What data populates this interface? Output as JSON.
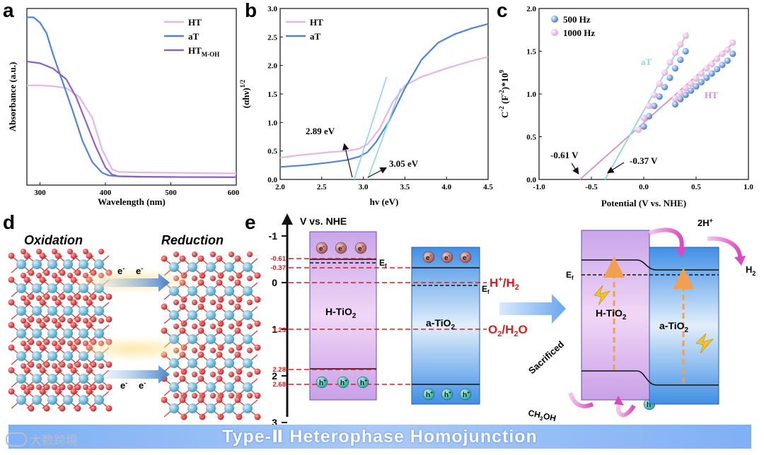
{
  "panels": {
    "a": {
      "letter": "a",
      "xlabel": "Wavelength (nm)",
      "ylabel": "Absorbance (a.u.)",
      "xticks": [
        "300",
        "400",
        "500",
        "600"
      ],
      "legend": [
        "HT",
        "aT",
        "HT",
        "M-OH"
      ]
    },
    "b": {
      "letter": "b",
      "xlabel": "hv (eV)",
      "ylabel": "(αhν)",
      "ylabel_sup": "1/2",
      "xticks": [
        "2.0",
        "2.5",
        "3.0",
        "3.5",
        "4.0",
        "4.5"
      ],
      "yticks": [
        "0.0",
        "0.5",
        "1.0",
        "1.5",
        "2.0",
        "2.5",
        "3.0"
      ],
      "legend": [
        "HT",
        "aT"
      ],
      "annotations": [
        "2.89 eV",
        "3.05 eV"
      ]
    },
    "c": {
      "letter": "c",
      "xlabel": "Potential (V vs. NHE)",
      "ylabel_parts": [
        "C",
        "-2",
        " (F",
        "-2",
        ")*10",
        "9"
      ],
      "xticks": [
        "-1.0",
        "-0.5",
        "0.0",
        "0.5",
        "1.0"
      ],
      "yticks": [
        "0.0",
        "0.5",
        "1.0",
        "1.5",
        "2.0"
      ],
      "legend": [
        "500 Hz",
        "1000 Hz"
      ],
      "labels": [
        "aT",
        "HT"
      ],
      "annotations": [
        "-0.61 V",
        "-0.37 V"
      ]
    },
    "d": {
      "letter": "d",
      "oxidation": "Oxidation",
      "reduction": "Reduction",
      "electron": "e",
      "minus": "-"
    },
    "e": {
      "letter": "e",
      "axis_title": "V vs. NHE",
      "axis_ticks": [
        "-1",
        "0",
        "1",
        "2",
        "3"
      ],
      "levels": [
        "-0.61",
        "-0.37",
        "1.23",
        "2.28",
        "2.68"
      ],
      "ef": "E",
      "ef_sub": "f",
      "ht": "H-TiO",
      "at": "a-TiO",
      "sub2": "2",
      "hplus_couple": "H",
      "hplus_couple_b": "/H",
      "o2_couple": "O",
      "o2_couple_b": "/H",
      "o2_couple_c": "O",
      "hole": "h",
      "plus": "+",
      "twoh": "2H",
      "h2": "H",
      "sacrificed": "Sacrificed",
      "ch3oh_a": "CH",
      "ch3oh_b": "OH",
      "three": "3"
    }
  },
  "banner": "Type-Ⅱ Heterophase Homojunction",
  "watermark": "大数跨境",
  "colors": {
    "HT": "#e5b6e5",
    "aT": "#4f86cf",
    "HT_MOH": "#8a64c4",
    "fit_aT": "#8ed3ea",
    "fit_HT": "#d68ec6",
    "dash": "#d42020",
    "banner": "#8fb9f5"
  },
  "chart_data": [
    {
      "type": "line",
      "title": "a",
      "xlabel": "Wavelength (nm)",
      "ylabel": "Absorbance (a.u.)",
      "xlim": [
        280,
        600
      ],
      "ylim": [
        0,
        1
      ],
      "series": [
        {
          "name": "HT",
          "x": [
            280,
            300,
            320,
            340,
            360,
            380,
            395,
            410,
            420,
            450,
            500,
            550,
            600
          ],
          "y": [
            0.565,
            0.565,
            0.56,
            0.55,
            0.5,
            0.38,
            0.2,
            0.09,
            0.075,
            0.072,
            0.07,
            0.068,
            0.066
          ]
        },
        {
          "name": "aT",
          "x": [
            280,
            290,
            300,
            310,
            320,
            335,
            350,
            365,
            380,
            395,
            405,
            420,
            450,
            500,
            600
          ],
          "y": [
            0.95,
            0.95,
            0.92,
            0.86,
            0.74,
            0.58,
            0.42,
            0.25,
            0.13,
            0.07,
            0.055,
            0.05,
            0.048,
            0.046,
            0.045
          ]
        },
        {
          "name": "HT M-OH",
          "x": [
            280,
            300,
            320,
            340,
            355,
            370,
            385,
            400,
            410,
            420,
            450,
            500,
            600
          ],
          "y": [
            0.7,
            0.69,
            0.66,
            0.6,
            0.5,
            0.36,
            0.22,
            0.1,
            0.06,
            0.05,
            0.047,
            0.046,
            0.045
          ]
        }
      ]
    },
    {
      "type": "line",
      "title": "b",
      "xlabel": "hv (eV)",
      "ylabel": "(αhν)1/2",
      "xlim": [
        2.0,
        4.5
      ],
      "ylim": [
        0,
        3.0
      ],
      "series": [
        {
          "name": "HT",
          "x": [
            2.0,
            2.2,
            2.4,
            2.6,
            2.8,
            2.95,
            3.05,
            3.2,
            3.35,
            3.5,
            3.7,
            4.0,
            4.3,
            4.5
          ],
          "y": [
            0.38,
            0.42,
            0.45,
            0.48,
            0.5,
            0.54,
            0.62,
            0.9,
            1.35,
            1.65,
            1.8,
            1.95,
            2.08,
            2.15
          ]
        },
        {
          "name": "aT",
          "x": [
            2.0,
            2.3,
            2.6,
            2.8,
            2.95,
            3.05,
            3.15,
            3.3,
            3.5,
            3.7,
            3.9,
            4.1,
            4.3,
            4.5
          ],
          "y": [
            0.22,
            0.25,
            0.3,
            0.34,
            0.4,
            0.48,
            0.65,
            1.0,
            1.6,
            2.1,
            2.4,
            2.55,
            2.65,
            2.73
          ]
        },
        {
          "name": "HT fit",
          "x": [
            2.89,
            3.28
          ],
          "y": [
            0.0,
            1.8
          ]
        },
        {
          "name": "aT fit",
          "x": [
            3.05,
            3.45
          ],
          "y": [
            0.0,
            1.6
          ]
        }
      ],
      "annotations": [
        "2.89 eV",
        "3.05 eV"
      ]
    },
    {
      "type": "scatter",
      "title": "c",
      "xlabel": "Potential (V vs. NHE)",
      "ylabel": "C-2 (F-2)*109",
      "xlim": [
        -1.0,
        1.0
      ],
      "ylim": [
        0.0,
        2.0
      ],
      "series": [
        {
          "name": "500 Hz aT",
          "x": [
            0.0,
            0.05,
            0.1,
            0.15,
            0.2,
            0.25,
            0.3,
            0.35,
            0.4
          ],
          "y": [
            0.62,
            0.74,
            0.86,
            0.97,
            1.08,
            1.19,
            1.3,
            1.4,
            1.5
          ]
        },
        {
          "name": "1000 Hz aT",
          "x": [
            -0.05,
            0.0,
            0.05,
            0.1,
            0.15,
            0.2,
            0.25,
            0.3,
            0.35,
            0.4
          ],
          "y": [
            0.58,
            0.72,
            0.86,
            0.99,
            1.12,
            1.25,
            1.37,
            1.48,
            1.58,
            1.68
          ]
        },
        {
          "name": "500 Hz HT",
          "x": [
            0.3,
            0.35,
            0.4,
            0.45,
            0.5,
            0.55,
            0.6,
            0.65,
            0.7,
            0.75,
            0.8,
            0.85
          ],
          "y": [
            0.88,
            0.94,
            0.99,
            1.04,
            1.09,
            1.14,
            1.19,
            1.24,
            1.29,
            1.34,
            1.39,
            1.47
          ]
        },
        {
          "name": "1000 Hz HT",
          "x": [
            0.3,
            0.35,
            0.4,
            0.45,
            0.5,
            0.55,
            0.6,
            0.65,
            0.7,
            0.75,
            0.8,
            0.85
          ],
          "y": [
            0.95,
            1.01,
            1.07,
            1.12,
            1.18,
            1.24,
            1.3,
            1.35,
            1.41,
            1.47,
            1.52,
            1.6
          ]
        }
      ],
      "intercepts": [
        -0.61,
        -0.37
      ]
    }
  ]
}
